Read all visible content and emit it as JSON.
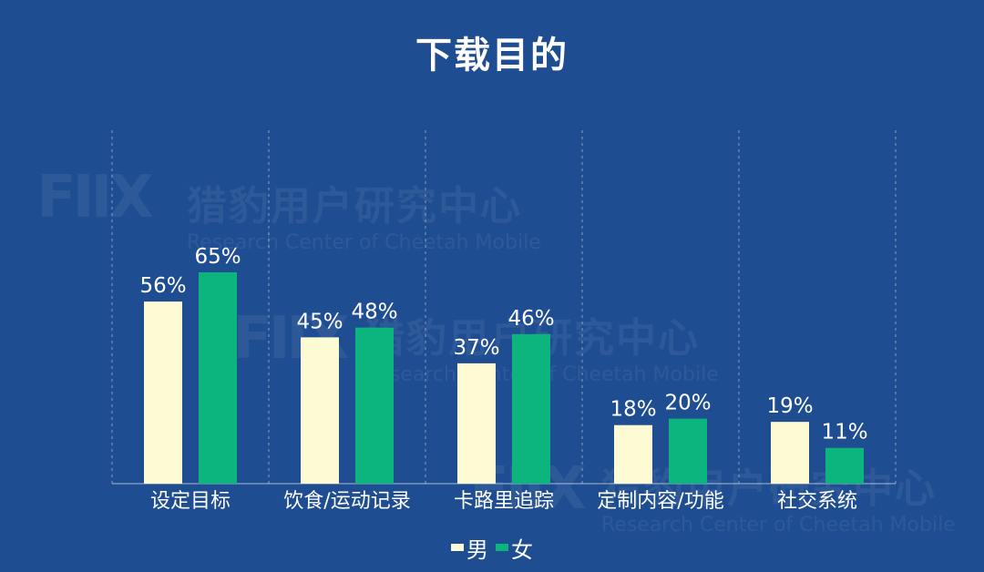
{
  "title": "下载目的",
  "colors": {
    "background": "#1f4d91",
    "male": "#fdfbd4",
    "female": "#0db57e"
  },
  "watermark": {
    "logo": "FIIX",
    "name": "猎豹用户研究中心",
    "subtitle": "Research Center of Cheetah Mobile"
  },
  "legend": [
    {
      "label": "男",
      "color": "#fdfbd4"
    },
    {
      "label": "女",
      "color": "#0db57e"
    }
  ],
  "chart_data": {
    "type": "bar",
    "categories": [
      "设定目标",
      "饮食/运动记录",
      "卡路里追踪",
      "定制内容/功能",
      "社交系统"
    ],
    "series": [
      {
        "name": "男",
        "values": [
          56,
          45,
          37,
          18,
          19
        ],
        "labels": [
          "56%",
          "45%",
          "37%",
          "18%",
          "19%"
        ],
        "color": "#fdfbd4"
      },
      {
        "name": "女",
        "values": [
          65,
          48,
          46,
          20,
          11
        ],
        "labels": [
          "65%",
          "48%",
          "46%",
          "20%",
          "11%"
        ],
        "color": "#0db57e"
      }
    ],
    "ylim": [
      0,
      100
    ],
    "grid": "vertical-dashed",
    "legend_position": "bottom-center"
  }
}
